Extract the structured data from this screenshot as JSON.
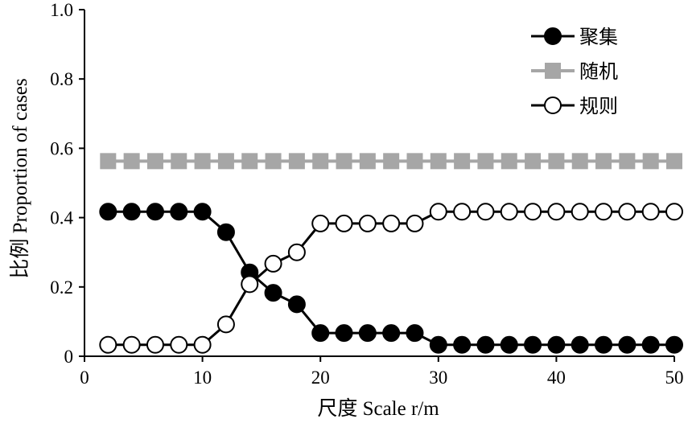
{
  "chart_data": {
    "type": "line",
    "title": "",
    "xlabel": "尺度 Scale r/m",
    "ylabel": "比例 Proportion of cases",
    "xlim": [
      0,
      50
    ],
    "ylim": [
      0,
      1.0
    ],
    "x_ticks": [
      "0",
      "10",
      "20",
      "30",
      "40",
      "50"
    ],
    "y_ticks": [
      "0",
      "0.2",
      "0.4",
      "0.6",
      "0.8",
      "1.0"
    ],
    "grid": false,
    "legend_position": "top-right",
    "x": [
      2,
      4,
      6,
      8,
      10,
      12,
      14,
      16,
      18,
      20,
      22,
      24,
      26,
      28,
      30,
      32,
      34,
      36,
      38,
      40,
      42,
      44,
      46,
      48,
      50
    ],
    "series": [
      {
        "name": "聚集",
        "marker": "filled-circle",
        "color": "#000000",
        "values": [
          0.417,
          0.417,
          0.417,
          0.417,
          0.417,
          0.358,
          0.242,
          0.183,
          0.15,
          0.067,
          0.067,
          0.067,
          0.067,
          0.067,
          0.033,
          0.033,
          0.033,
          0.033,
          0.033,
          0.033,
          0.033,
          0.033,
          0.033,
          0.033,
          0.033
        ]
      },
      {
        "name": "随机",
        "marker": "square",
        "color": "#a6a6a6",
        "values": [
          0.563,
          0.563,
          0.563,
          0.563,
          0.563,
          0.563,
          0.563,
          0.563,
          0.563,
          0.563,
          0.563,
          0.563,
          0.563,
          0.563,
          0.563,
          0.563,
          0.563,
          0.563,
          0.563,
          0.563,
          0.563,
          0.563,
          0.563,
          0.563,
          0.563
        ]
      },
      {
        "name": "规则",
        "marker": "open-circle",
        "color": "#000000",
        "values": [
          0.033,
          0.033,
          0.033,
          0.033,
          0.033,
          0.092,
          0.208,
          0.267,
          0.3,
          0.383,
          0.383,
          0.383,
          0.383,
          0.383,
          0.417,
          0.417,
          0.417,
          0.417,
          0.417,
          0.417,
          0.417,
          0.417,
          0.417,
          0.417,
          0.417
        ]
      }
    ]
  }
}
